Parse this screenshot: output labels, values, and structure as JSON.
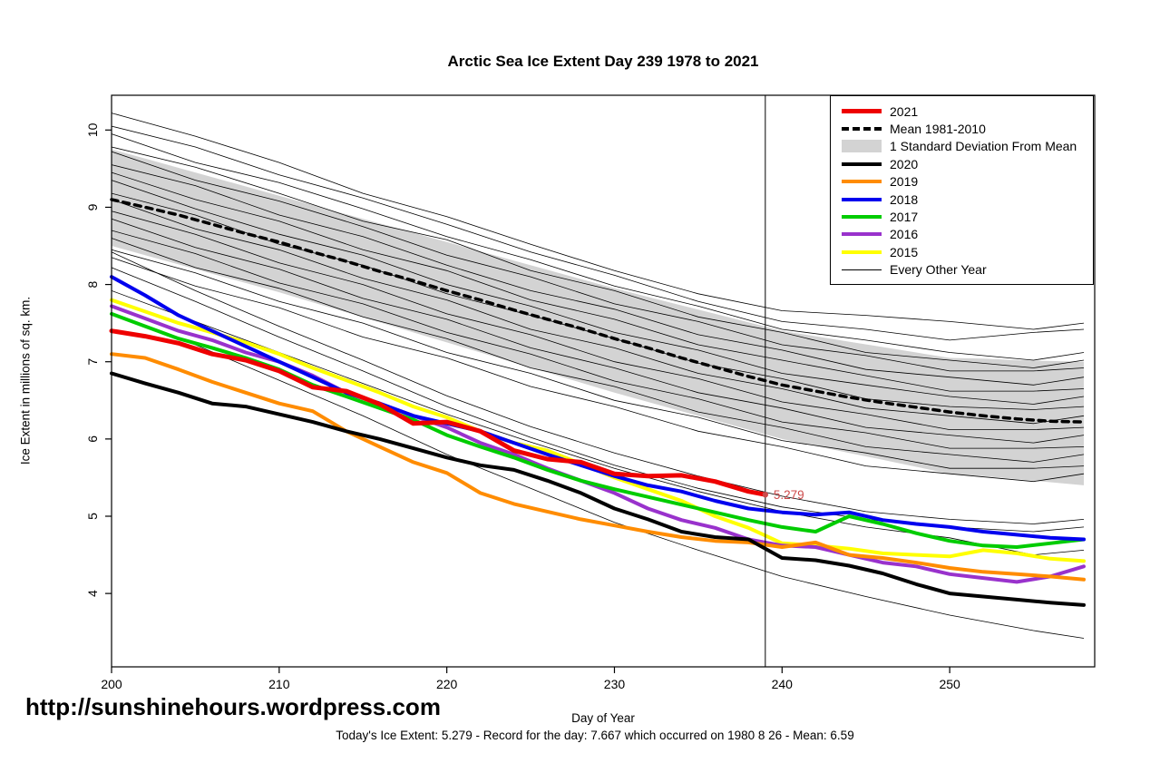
{
  "title": "Arctic Sea Ice Extent Day 239 1978 to 2021",
  "footer": {
    "url": "http://sunshinehours.wordpress.com",
    "caption": "Today's Ice Extent: 5.279  - Record for the day: 7.667 which occurred on 1980 8 26  - Mean: 6.59"
  },
  "chart_data": {
    "type": "line",
    "title": "Arctic Sea Ice Extent Day 239 1978 to 2021",
    "xlabel": "Day of Year",
    "ylabel": "Ice Extent in millions of sq. km.",
    "xlim": [
      200,
      258.65
    ],
    "ylim": [
      3.05,
      10.45
    ],
    "xticks": [
      200,
      210,
      220,
      230,
      240,
      250
    ],
    "yticks": [
      4,
      5,
      6,
      7,
      8,
      9,
      10
    ],
    "grid": false,
    "marker_day": 239,
    "annotation": {
      "text": "5.279",
      "day": 239,
      "value": 5.279,
      "color": "#cd4a4a"
    },
    "x": [
      200,
      202,
      204,
      206,
      208,
      210,
      212,
      214,
      216,
      218,
      220,
      222,
      224,
      226,
      228,
      230,
      232,
      234,
      236,
      238,
      240,
      242,
      244,
      246,
      248,
      250,
      252,
      254,
      256,
      258
    ],
    "band": {
      "label": "1 Standard Deviation From Mean",
      "color": "#d3d3d3",
      "upper": [
        9.75,
        9.63,
        9.51,
        9.39,
        9.27,
        9.15,
        9.03,
        8.91,
        8.79,
        8.67,
        8.55,
        8.43,
        8.31,
        8.19,
        8.07,
        7.95,
        7.84,
        7.73,
        7.62,
        7.51,
        7.4,
        7.33,
        7.26,
        7.19,
        7.12,
        7.05,
        7.04,
        7.02,
        7.01,
        7.0
      ],
      "lower": [
        8.5,
        8.38,
        8.26,
        8.14,
        8.02,
        7.9,
        7.77,
        7.64,
        7.51,
        7.38,
        7.25,
        7.12,
        6.99,
        6.86,
        6.73,
        6.6,
        6.48,
        6.36,
        6.24,
        6.12,
        6.0,
        5.91,
        5.82,
        5.73,
        5.64,
        5.55,
        5.52,
        5.48,
        5.44,
        5.4
      ]
    },
    "series": [
      {
        "name": "Mean 1981-2010",
        "color": "#000000",
        "width": 3.5,
        "dash": "7,6",
        "values": [
          9.1,
          9.0,
          8.9,
          8.78,
          8.66,
          8.55,
          8.42,
          8.3,
          8.17,
          8.05,
          7.92,
          7.8,
          7.67,
          7.55,
          7.43,
          7.3,
          7.18,
          7.05,
          6.93,
          6.81,
          6.7,
          6.62,
          6.54,
          6.47,
          6.41,
          6.35,
          6.3,
          6.26,
          6.23,
          6.22
        ]
      },
      {
        "name": "2015",
        "color": "#ffff00",
        "width": 4,
        "values": [
          7.8,
          7.65,
          7.5,
          7.38,
          7.25,
          7.1,
          6.92,
          6.76,
          6.6,
          6.42,
          6.28,
          6.1,
          5.95,
          5.85,
          5.68,
          5.5,
          5.35,
          5.2,
          5.0,
          4.85,
          4.65,
          4.62,
          4.58,
          4.52,
          4.5,
          4.48,
          4.56,
          4.52,
          4.45,
          4.42
        ]
      },
      {
        "name": "2016",
        "color": "#9932cc",
        "width": 4,
        "values": [
          7.72,
          7.56,
          7.4,
          7.28,
          7.12,
          7.0,
          6.82,
          6.6,
          6.46,
          6.3,
          6.15,
          5.95,
          5.8,
          5.62,
          5.46,
          5.3,
          5.1,
          4.95,
          4.85,
          4.7,
          4.62,
          4.6,
          4.5,
          4.4,
          4.35,
          4.25,
          4.2,
          4.15,
          4.22,
          4.35
        ]
      },
      {
        "name": "2017",
        "color": "#00cc00",
        "width": 4,
        "values": [
          7.62,
          7.46,
          7.3,
          7.18,
          7.05,
          6.9,
          6.7,
          6.55,
          6.4,
          6.25,
          6.05,
          5.9,
          5.76,
          5.6,
          5.46,
          5.35,
          5.25,
          5.15,
          5.05,
          4.95,
          4.86,
          4.8,
          5.0,
          4.9,
          4.78,
          4.68,
          4.62,
          4.6,
          4.65,
          4.7
        ]
      },
      {
        "name": "2018",
        "color": "#0000ee",
        "width": 4,
        "values": [
          8.1,
          7.86,
          7.6,
          7.4,
          7.2,
          7.0,
          6.8,
          6.6,
          6.46,
          6.3,
          6.2,
          6.1,
          5.95,
          5.8,
          5.66,
          5.52,
          5.4,
          5.32,
          5.2,
          5.1,
          5.05,
          5.02,
          5.05,
          4.95,
          4.9,
          4.86,
          4.8,
          4.76,
          4.72,
          4.7
        ]
      },
      {
        "name": "2019",
        "color": "#ff8c00",
        "width": 4,
        "values": [
          7.1,
          7.05,
          6.9,
          6.74,
          6.6,
          6.46,
          6.36,
          6.1,
          5.9,
          5.7,
          5.56,
          5.3,
          5.16,
          5.06,
          4.96,
          4.88,
          4.8,
          4.73,
          4.68,
          4.66,
          4.6,
          4.66,
          4.5,
          4.46,
          4.4,
          4.33,
          4.28,
          4.25,
          4.22,
          4.18
        ]
      },
      {
        "name": "2020",
        "color": "#000000",
        "width": 4,
        "values": [
          6.85,
          6.72,
          6.6,
          6.46,
          6.42,
          6.32,
          6.22,
          6.1,
          6.0,
          5.88,
          5.76,
          5.66,
          5.6,
          5.46,
          5.3,
          5.1,
          4.96,
          4.8,
          4.73,
          4.7,
          4.46,
          4.43,
          4.36,
          4.26,
          4.12,
          4.0,
          3.96,
          3.92,
          3.88,
          3.85
        ]
      },
      {
        "name": "2021",
        "color": "#ee0000",
        "width": 5,
        "x": [
          200,
          202,
          204,
          206,
          208,
          210,
          212,
          214,
          216,
          218,
          220,
          222,
          224,
          226,
          228,
          230,
          232,
          234,
          236,
          238,
          239
        ],
        "values": [
          7.4,
          7.33,
          7.24,
          7.1,
          7.02,
          6.88,
          6.67,
          6.62,
          6.45,
          6.2,
          6.22,
          6.1,
          5.85,
          5.74,
          5.7,
          5.55,
          5.52,
          5.53,
          5.45,
          5.32,
          5.279
        ]
      }
    ],
    "background_series_label": "Every Other Year",
    "background_x": [
      200,
      205,
      210,
      215,
      220,
      225,
      230,
      235,
      240,
      245,
      250,
      255,
      258
    ],
    "background_series": [
      {
        "values": [
          10.22,
          9.92,
          9.58,
          9.18,
          8.88,
          8.52,
          8.18,
          7.88,
          7.66,
          7.6,
          7.52,
          7.42,
          7.5
        ]
      },
      {
        "values": [
          10.05,
          9.78,
          9.42,
          9.12,
          8.78,
          8.42,
          8.12,
          7.78,
          7.52,
          7.42,
          7.28,
          7.38,
          7.42
        ]
      },
      {
        "values": [
          9.95,
          9.58,
          9.32,
          8.98,
          8.62,
          8.32,
          7.98,
          7.72,
          7.42,
          7.28,
          7.12,
          7.02,
          7.12
        ]
      },
      {
        "values": [
          9.78,
          9.52,
          9.18,
          8.82,
          8.58,
          8.18,
          7.92,
          7.58,
          7.38,
          7.12,
          7.02,
          6.92,
          7.02
        ]
      },
      {
        "values": [
          9.72,
          9.35,
          9.08,
          8.75,
          8.38,
          8.1,
          7.75,
          7.52,
          7.22,
          7.08,
          6.88,
          6.88,
          6.92
        ]
      },
      {
        "values": [
          9.55,
          9.28,
          8.9,
          8.62,
          8.25,
          7.92,
          7.68,
          7.35,
          7.15,
          6.9,
          6.8,
          6.7,
          6.8
        ]
      },
      {
        "values": [
          9.45,
          9.1,
          8.82,
          8.45,
          8.18,
          7.8,
          7.55,
          7.22,
          7.02,
          6.82,
          6.62,
          6.62,
          6.65
        ]
      },
      {
        "values": [
          9.35,
          8.98,
          8.65,
          8.38,
          8.0,
          7.72,
          7.38,
          7.15,
          6.85,
          6.7,
          6.55,
          6.45,
          6.55
        ]
      },
      {
        "values": [
          9.18,
          8.9,
          8.52,
          8.25,
          7.88,
          7.6,
          7.3,
          6.98,
          6.78,
          6.52,
          6.42,
          6.38,
          6.42
        ]
      },
      {
        "values": [
          9.1,
          8.72,
          8.45,
          8.08,
          7.8,
          7.42,
          7.18,
          6.85,
          6.65,
          6.4,
          6.3,
          6.2,
          6.3
        ]
      },
      {
        "values": [
          8.95,
          8.65,
          8.28,
          8.0,
          7.62,
          7.35,
          7.0,
          6.78,
          6.48,
          6.32,
          6.12,
          6.12,
          6.15
        ]
      },
      {
        "values": [
          8.85,
          8.48,
          8.2,
          7.82,
          7.55,
          7.18,
          6.92,
          6.6,
          6.4,
          6.15,
          6.05,
          5.95,
          6.05
        ]
      },
      {
        "values": [
          8.7,
          8.4,
          8.02,
          7.75,
          7.38,
          7.1,
          6.75,
          6.52,
          6.22,
          6.08,
          5.88,
          5.88,
          5.9
        ]
      },
      {
        "values": [
          8.6,
          8.22,
          7.95,
          7.58,
          7.3,
          6.92,
          6.68,
          6.35,
          6.15,
          5.9,
          5.8,
          5.7,
          5.8
        ]
      },
      {
        "values": [
          8.45,
          8.15,
          7.78,
          7.5,
          7.12,
          6.85,
          6.5,
          6.28,
          5.98,
          5.82,
          5.62,
          5.62,
          5.65
        ]
      },
      {
        "values": [
          8.35,
          7.98,
          7.7,
          7.32,
          7.05,
          6.68,
          6.42,
          6.1,
          5.9,
          5.65,
          5.55,
          5.45,
          5.55
        ]
      },
      {
        "values": [
          8.22,
          7.78,
          7.32,
          6.88,
          6.42,
          6.02,
          5.66,
          5.36,
          5.12,
          4.96,
          4.86,
          4.8,
          4.86
        ]
      },
      {
        "values": [
          8.42,
          7.92,
          7.46,
          7.02,
          6.56,
          6.16,
          5.82,
          5.52,
          5.26,
          5.06,
          4.96,
          4.9,
          4.96
        ]
      },
      {
        "values": [
          7.62,
          7.22,
          6.76,
          6.3,
          5.8,
          5.36,
          4.92,
          4.56,
          4.22,
          3.96,
          3.72,
          3.52,
          3.42
        ]
      },
      {
        "values": [
          7.92,
          7.52,
          7.12,
          6.72,
          6.32,
          5.96,
          5.62,
          5.32,
          5.06,
          4.86,
          4.72,
          4.5,
          4.56
        ]
      }
    ],
    "legend": {
      "position": "top-right",
      "items": [
        {
          "label": "2021",
          "swatch": "line",
          "color": "#ee0000",
          "width": 5
        },
        {
          "label": "Mean 1981-2010",
          "swatch": "dashed",
          "color": "#000000",
          "width": 4
        },
        {
          "label": "1 Standard Deviation From Mean",
          "swatch": "box",
          "color": "#d3d3d3"
        },
        {
          "label": "2020",
          "swatch": "line",
          "color": "#000000",
          "width": 4
        },
        {
          "label": "2019",
          "swatch": "line",
          "color": "#ff8c00",
          "width": 4
        },
        {
          "label": "2018",
          "swatch": "line",
          "color": "#0000ee",
          "width": 4
        },
        {
          "label": "2017",
          "swatch": "line",
          "color": "#00cc00",
          "width": 4
        },
        {
          "label": "2016",
          "swatch": "line",
          "color": "#9932cc",
          "width": 4
        },
        {
          "label": "2015",
          "swatch": "line",
          "color": "#ffff00",
          "width": 4
        },
        {
          "label": "Every Other Year",
          "swatch": "line",
          "color": "#000000",
          "width": 1.2
        }
      ]
    }
  }
}
